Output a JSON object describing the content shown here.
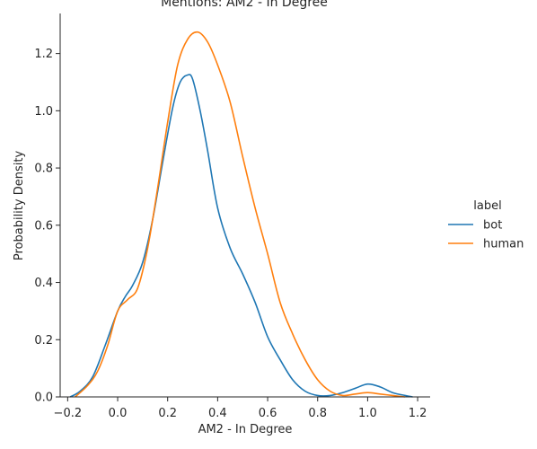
{
  "chart_data": {
    "type": "line",
    "title": "Mentions: AM2 - In Degree",
    "xlabel": "AM2 - In Degree",
    "ylabel": "Probability Density",
    "xlim": [
      -0.23,
      1.25
    ],
    "ylim": [
      0,
      1.34
    ],
    "xticks": [
      -0.2,
      0.0,
      0.2,
      0.4,
      0.6,
      0.8,
      1.0,
      1.2
    ],
    "xtick_labels": [
      "−0.2",
      "0.0",
      "0.2",
      "0.4",
      "0.6",
      "0.8",
      "1.0",
      "1.2"
    ],
    "yticks": [
      0.0,
      0.2,
      0.4,
      0.6,
      0.8,
      1.0,
      1.2
    ],
    "ytick_labels": [
      "0.0",
      "0.2",
      "0.4",
      "0.6",
      "0.8",
      "1.0",
      "1.2"
    ],
    "grid": false,
    "legend": {
      "title": "label",
      "position": "right"
    },
    "series": [
      {
        "name": "bot",
        "color": "#1f77b4",
        "x": [
          -0.19,
          -0.15,
          -0.1,
          -0.05,
          0.0,
          0.03,
          0.06,
          0.1,
          0.14,
          0.18,
          0.22,
          0.25,
          0.28,
          0.3,
          0.33,
          0.36,
          0.4,
          0.45,
          0.5,
          0.55,
          0.6,
          0.65,
          0.7,
          0.75,
          0.8,
          0.85,
          0.9,
          0.95,
          1.0,
          1.05,
          1.1,
          1.15,
          1.18
        ],
        "y": [
          0.0,
          0.02,
          0.07,
          0.18,
          0.3,
          0.35,
          0.39,
          0.47,
          0.62,
          0.82,
          1.01,
          1.1,
          1.125,
          1.11,
          1.0,
          0.86,
          0.66,
          0.52,
          0.43,
          0.33,
          0.21,
          0.13,
          0.06,
          0.02,
          0.005,
          0.005,
          0.015,
          0.03,
          0.045,
          0.035,
          0.015,
          0.005,
          0.0
        ]
      },
      {
        "name": "human",
        "color": "#ff7f0e",
        "x": [
          -0.17,
          -0.12,
          -0.08,
          -0.04,
          0.0,
          0.04,
          0.08,
          0.12,
          0.16,
          0.2,
          0.24,
          0.28,
          0.32,
          0.36,
          0.4,
          0.45,
          0.5,
          0.55,
          0.6,
          0.65,
          0.7,
          0.75,
          0.8,
          0.85,
          0.9,
          0.95,
          1.0,
          1.05,
          1.1,
          1.15
        ],
        "y": [
          0.0,
          0.04,
          0.09,
          0.18,
          0.3,
          0.34,
          0.38,
          0.52,
          0.73,
          0.96,
          1.16,
          1.25,
          1.275,
          1.24,
          1.16,
          1.03,
          0.84,
          0.66,
          0.5,
          0.33,
          0.22,
          0.13,
          0.06,
          0.02,
          0.005,
          0.01,
          0.015,
          0.01,
          0.005,
          0.0
        ]
      }
    ]
  }
}
